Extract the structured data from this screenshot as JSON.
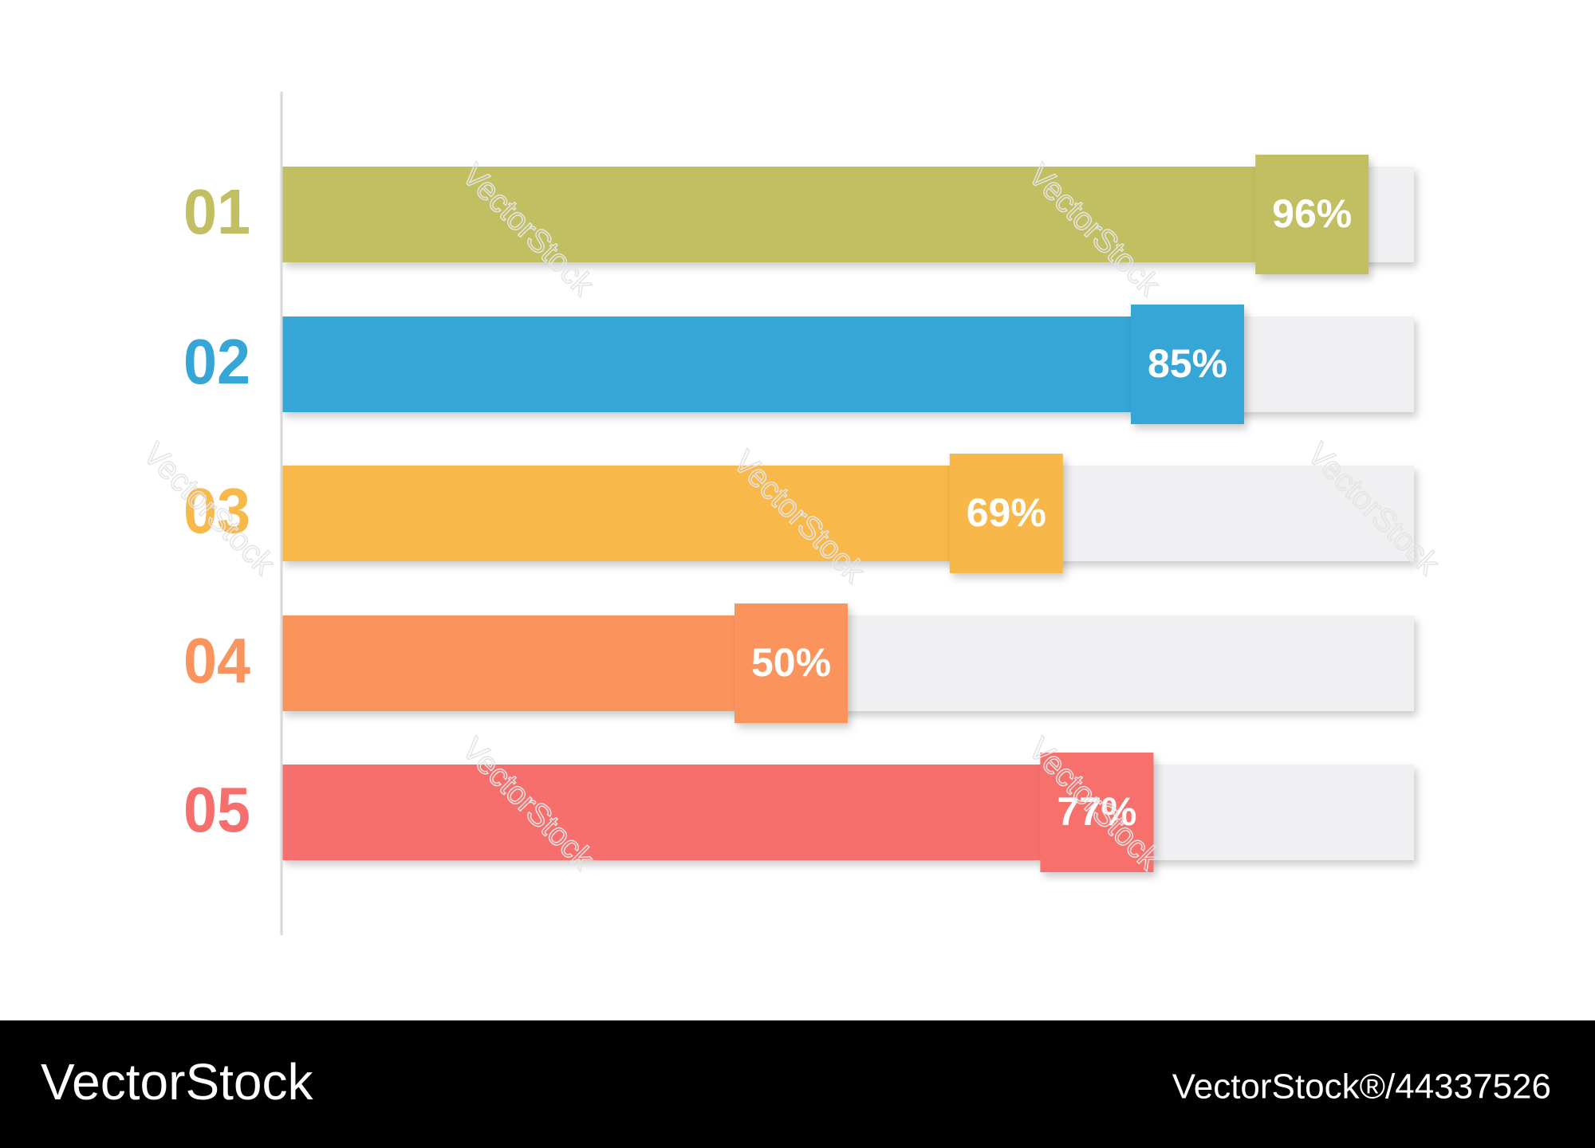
{
  "chart_data": {
    "type": "bar",
    "orientation": "horizontal",
    "categories": [
      "01",
      "02",
      "03",
      "04",
      "05"
    ],
    "values": [
      96,
      85,
      69,
      50,
      77
    ],
    "value_labels": [
      "96%",
      "85%",
      "69%",
      "50%",
      "77%"
    ],
    "colors": [
      "#c2be62",
      "#36a6d6",
      "#f8b84a",
      "#fb945c",
      "#f76f6c"
    ],
    "track_color": "#f0eff1",
    "xlim": [
      0,
      100
    ]
  },
  "watermark": "VectorStock",
  "footer": {
    "brand": "VectorStock",
    "id": "VectorStock®/44337526"
  }
}
